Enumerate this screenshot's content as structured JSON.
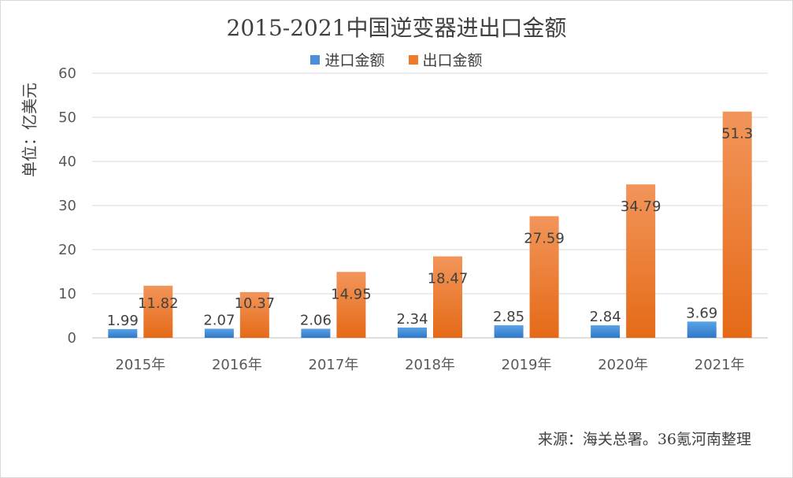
{
  "chart_data": {
    "type": "bar",
    "title": "2015-2021中国逆变器进出口金额",
    "ylabel": "单位：亿美元",
    "categories": [
      "2015年",
      "2016年",
      "2017年",
      "2018年",
      "2019年",
      "2020年",
      "2021年"
    ],
    "series": [
      {
        "name": "进口金额",
        "color": "#4a90d9",
        "values": [
          1.99,
          2.07,
          2.06,
          2.34,
          2.85,
          2.84,
          3.69
        ]
      },
      {
        "name": "出口金额",
        "color": "#ee7a2a",
        "values": [
          11.82,
          10.37,
          14.95,
          18.47,
          27.59,
          34.79,
          51.3
        ]
      }
    ],
    "ylim": [
      0,
      60
    ],
    "yticks": [
      0,
      10,
      20,
      30,
      40,
      50,
      60
    ],
    "grid": true,
    "legend_position": "top"
  },
  "source": "来源：海关总署。36氪河南整理"
}
